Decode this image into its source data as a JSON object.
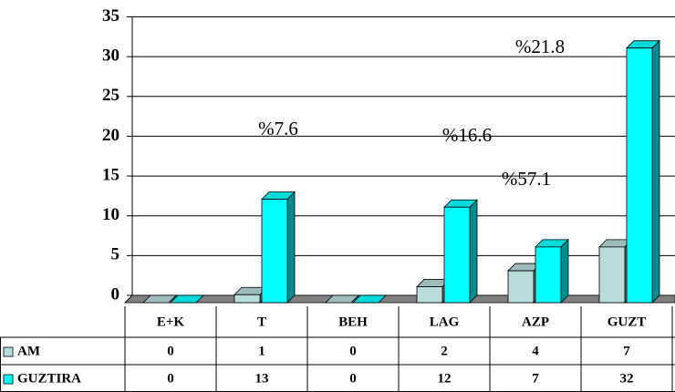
{
  "chart_data": {
    "type": "bar3d",
    "categories": [
      "E+K",
      "T",
      "BEH",
      "LAG",
      "AZP",
      "GUZT"
    ],
    "series": [
      {
        "name": "AM",
        "color": "#b8dcdc",
        "values": [
          0,
          1,
          0,
          2,
          4,
          7
        ]
      },
      {
        "name": "GUZTIRA",
        "color": "#00ffff",
        "values": [
          0,
          13,
          0,
          12,
          7,
          32
        ]
      }
    ],
    "ylim": [
      0,
      35
    ],
    "yticks": [
      0,
      5,
      10,
      15,
      20,
      25,
      30,
      35
    ],
    "grid": true,
    "annotations": [
      "%7.6",
      "%16.6",
      "%57.1",
      "%21.8"
    ],
    "data_table": true
  }
}
